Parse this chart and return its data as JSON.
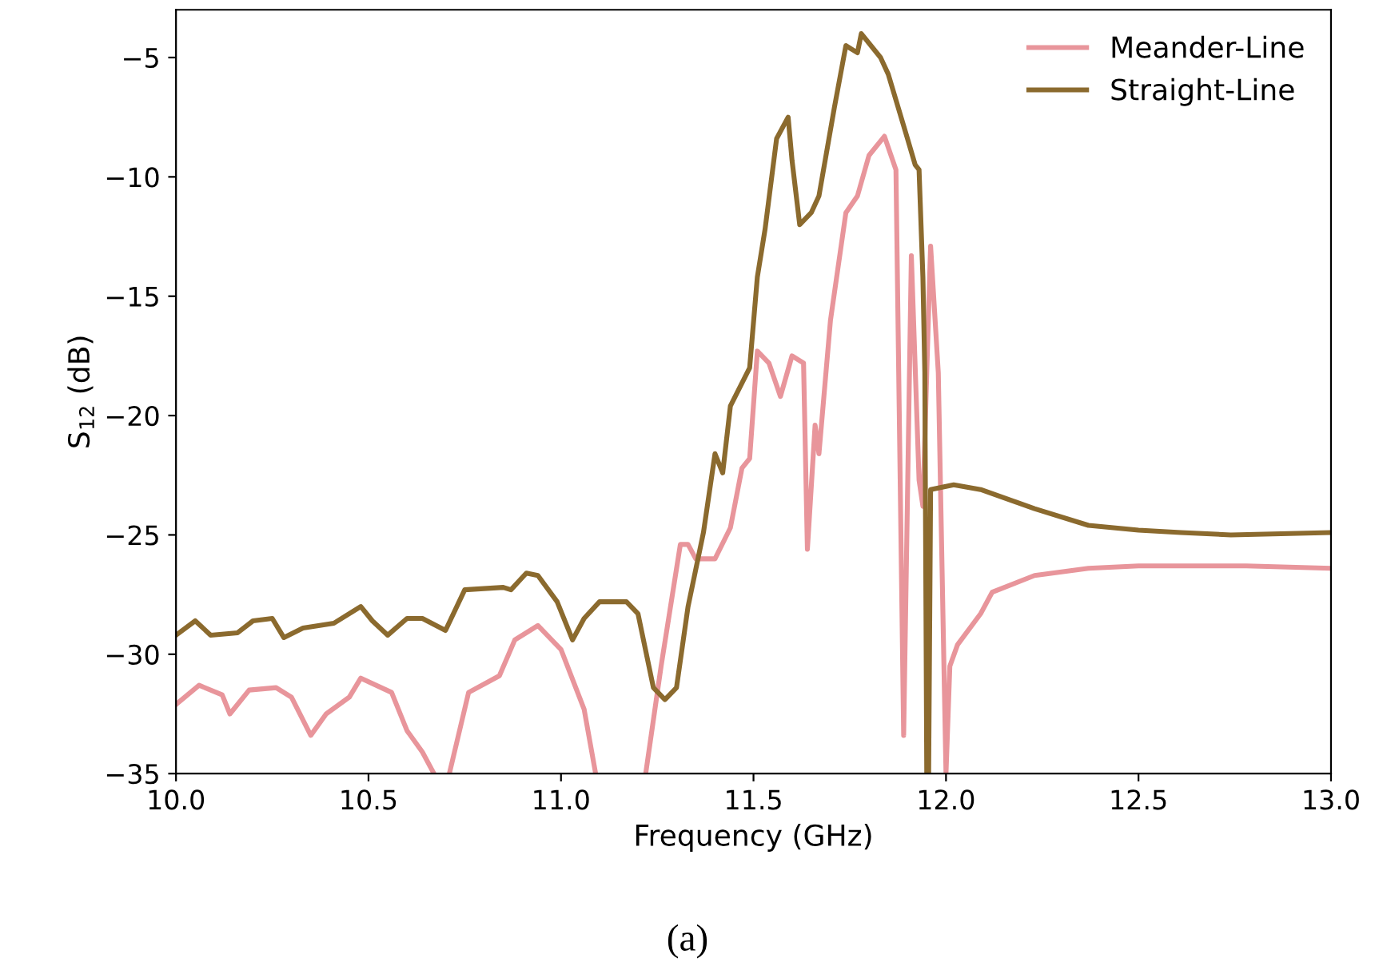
{
  "chart_data": {
    "type": "line",
    "xlabel": "Frequency (GHz)",
    "ylabel": "S$_{12}$ (dB)",
    "annotations": [
      "(a)"
    ],
    "xlim": [
      10,
      13
    ],
    "ylim": [
      -35,
      -3
    ],
    "xticks": [
      {
        "value": 10,
        "label": "10.0"
      },
      {
        "value": 10.5,
        "label": "10.5"
      },
      {
        "value": 11,
        "label": "11.0"
      },
      {
        "value": 11.5,
        "label": "11.5"
      },
      {
        "value": 12,
        "label": "12.0"
      },
      {
        "value": 12.5,
        "label": "12.5"
      },
      {
        "value": 13,
        "label": "13.0"
      }
    ],
    "yticks": [
      {
        "value": -35,
        "label": "−35"
      },
      {
        "value": -30,
        "label": "−30"
      },
      {
        "value": -25,
        "label": "−25"
      },
      {
        "value": -20,
        "label": "−20"
      },
      {
        "value": -15,
        "label": "−15"
      },
      {
        "value": -10,
        "label": "−10"
      },
      {
        "value": -5,
        "label": "−5"
      }
    ],
    "grid": false,
    "legend": "top right",
    "marker": "none",
    "line_style": "solid",
    "series": [
      {
        "name": "Meander-Line",
        "color": "#e8959b",
        "x": [
          10.0,
          10.06,
          10.12,
          10.14,
          10.19,
          10.26,
          10.3,
          10.35,
          10.39,
          10.45,
          10.48,
          10.56,
          10.6,
          10.64,
          10.67,
          10.69,
          10.71,
          10.76,
          10.84,
          10.88,
          10.94,
          11.0,
          11.06,
          11.09,
          11.15,
          11.22,
          11.26,
          11.31,
          11.33,
          11.35,
          11.4,
          11.44,
          11.47,
          11.49,
          11.51,
          11.54,
          11.57,
          11.6,
          11.63,
          11.64,
          11.66,
          11.67,
          11.7,
          11.74,
          11.77,
          11.8,
          11.84,
          11.87,
          11.89,
          11.91,
          11.93,
          11.94,
          11.95,
          11.96,
          11.98,
          12.0,
          12.01,
          12.03,
          12.09,
          12.12,
          12.23,
          12.37,
          12.5,
          12.78,
          13.0
        ],
        "values": [
          -32.1,
          -31.3,
          -31.7,
          -32.5,
          -31.5,
          -31.4,
          -31.8,
          -33.4,
          -32.5,
          -31.8,
          -31.0,
          -31.6,
          -33.2,
          -34.1,
          -35,
          null,
          -35,
          -31.6,
          -30.9,
          -29.4,
          -28.8,
          -29.8,
          -32.3,
          -35,
          null,
          -35,
          -30.5,
          -25.4,
          -25.4,
          -26.0,
          -26.0,
          -24.7,
          -22.2,
          -21.8,
          -17.3,
          -17.8,
          -19.2,
          -17.5,
          -17.8,
          -25.6,
          -20.4,
          -21.6,
          -16.0,
          -11.5,
          -10.8,
          -9.1,
          -8.3,
          -9.7,
          -33.4,
          -13.3,
          -22.7,
          -23.8,
          -18.2,
          -12.9,
          -18.2,
          -35,
          -30.5,
          -29.6,
          -28.3,
          -27.4,
          -26.7,
          -26.4,
          -26.3,
          -26.3,
          -26.4
        ]
      },
      {
        "name": "Straight-Line",
        "color": "#8b6a2e",
        "x": [
          10.0,
          10.05,
          10.09,
          10.16,
          10.2,
          10.25,
          10.28,
          10.33,
          10.41,
          10.48,
          10.51,
          10.55,
          10.6,
          10.64,
          10.7,
          10.75,
          10.85,
          10.87,
          10.91,
          10.94,
          10.99,
          11.03,
          11.06,
          11.1,
          11.17,
          11.2,
          11.24,
          11.27,
          11.3,
          11.33,
          11.37,
          11.4,
          11.42,
          11.44,
          11.49,
          11.51,
          11.53,
          11.56,
          11.59,
          11.6,
          11.62,
          11.65,
          11.67,
          11.71,
          11.74,
          11.77,
          11.78,
          11.83,
          11.85,
          11.9,
          11.92,
          11.93,
          11.94,
          11.945,
          11.95,
          11.955,
          11.96,
          12.02,
          12.09,
          12.23,
          12.37,
          12.5,
          12.61,
          12.74,
          13.0
        ],
        "values": [
          -29.2,
          -28.6,
          -29.2,
          -29.1,
          -28.6,
          -28.5,
          -29.3,
          -28.9,
          -28.7,
          -28.0,
          -28.6,
          -29.2,
          -28.5,
          -28.5,
          -29.0,
          -27.3,
          -27.2,
          -27.3,
          -26.6,
          -26.7,
          -27.8,
          -29.4,
          -28.5,
          -27.8,
          -27.8,
          -28.3,
          -31.4,
          -31.9,
          -31.4,
          -28.0,
          -24.9,
          -21.6,
          -22.4,
          -19.6,
          -18.0,
          -14.2,
          -12.2,
          -8.4,
          -7.5,
          -9.3,
          -12.0,
          -11.5,
          -10.8,
          -7.1,
          -4.5,
          -4.8,
          -4.0,
          -5.0,
          -5.7,
          -8.4,
          -9.5,
          -9.7,
          -14.2,
          -18.2,
          -35,
          -35,
          -23.1,
          -22.9,
          -23.1,
          -23.9,
          -24.6,
          -24.8,
          -24.9,
          -25.0,
          -24.9
        ]
      }
    ]
  }
}
